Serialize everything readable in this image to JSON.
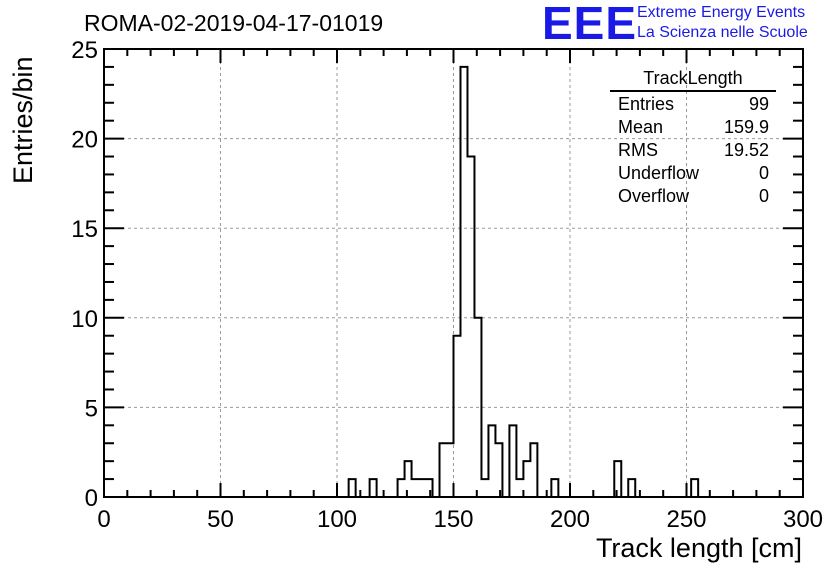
{
  "header": {
    "title": "ROMA-02-2019-04-17-01019",
    "logo_text": "EEE",
    "logo_line1": "Extreme Energy Events",
    "logo_line2": "La Scienza nelle Scuole"
  },
  "stats_box": {
    "title": "TrackLength",
    "rows": [
      {
        "label": "Entries",
        "value": "99"
      },
      {
        "label": "Mean",
        "value": "159.9"
      },
      {
        "label": "RMS",
        "value": "19.52"
      },
      {
        "label": "Underflow",
        "value": "0"
      },
      {
        "label": "Overflow",
        "value": "0"
      }
    ]
  },
  "chart_data": {
    "type": "bar",
    "title": "ROMA-02-2019-04-17-01019",
    "xlabel": "Track length [cm]",
    "ylabel": "Entries/bin",
    "xlim": [
      0,
      300
    ],
    "ylim": [
      0,
      25
    ],
    "bin_width": 3,
    "x_ticks": [
      0,
      50,
      100,
      150,
      200,
      250,
      300
    ],
    "y_ticks": [
      0,
      5,
      10,
      15,
      20,
      25
    ],
    "grid": true,
    "line_color": "#000000",
    "bins": [
      {
        "x": 105,
        "count": 1
      },
      {
        "x": 114,
        "count": 1
      },
      {
        "x": 126,
        "count": 1
      },
      {
        "x": 129,
        "count": 2
      },
      {
        "x": 132,
        "count": 1
      },
      {
        "x": 135,
        "count": 1
      },
      {
        "x": 138,
        "count": 1
      },
      {
        "x": 144,
        "count": 3
      },
      {
        "x": 147,
        "count": 3
      },
      {
        "x": 150,
        "count": 9
      },
      {
        "x": 153,
        "count": 24
      },
      {
        "x": 156,
        "count": 19
      },
      {
        "x": 159,
        "count": 10
      },
      {
        "x": 162,
        "count": 1
      },
      {
        "x": 165,
        "count": 4
      },
      {
        "x": 168,
        "count": 3
      },
      {
        "x": 174,
        "count": 4
      },
      {
        "x": 177,
        "count": 1
      },
      {
        "x": 180,
        "count": 2
      },
      {
        "x": 183,
        "count": 3
      },
      {
        "x": 192,
        "count": 1
      },
      {
        "x": 219,
        "count": 2
      },
      {
        "x": 225,
        "count": 1
      },
      {
        "x": 252,
        "count": 1
      }
    ]
  }
}
